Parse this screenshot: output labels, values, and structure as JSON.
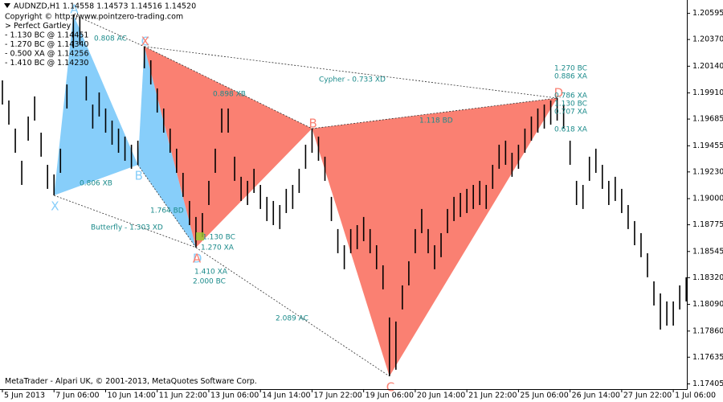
{
  "chart_data": {
    "type": "ohlc",
    "title": "AUDNZD,H1  1.14558 1.14573 1.14516 1.14520",
    "header_lines": [
      "Copyright © http://www.pointzero-trading.com",
      "> Perfect Gartley",
      "- 1.130 BC @ 1.14451",
      "- 1.270 BC @ 1.14340",
      "- 0.500 XA @ 1.14256",
      "- 1.410 BC @ 1.14230"
    ],
    "footer": "MetaTrader - Alpari UK, © 2001-2013, MetaQuotes Software Corp.",
    "categories": [
      "5 Jun 2013",
      null,
      null,
      null,
      null,
      null,
      null,
      null,
      "7 Jun 06:00",
      null,
      null,
      null,
      null,
      null,
      null,
      null,
      "10 Jun 14:00",
      null,
      null,
      null,
      null,
      null,
      null,
      null,
      "11 Jun 22:00",
      null,
      null,
      null,
      null,
      null,
      null,
      null,
      "13 Jun 06:00",
      null,
      null,
      null,
      null,
      null,
      null,
      null,
      "14 Jun 14:00",
      null,
      null,
      null,
      null,
      null,
      null,
      null,
      "17 Jun 22:00",
      null,
      null,
      null,
      null,
      null,
      null,
      null,
      "19 Jun 06:00",
      null,
      null,
      null,
      null,
      null,
      null,
      null,
      "20 Jun 14:00",
      null,
      null,
      null,
      null,
      null,
      null,
      null,
      "21 Jun 22:00",
      null,
      null,
      null,
      null,
      null,
      null,
      null,
      "25 Jun 06:00",
      null,
      null,
      null,
      null,
      null,
      null,
      null,
      "26 Jun 14:00",
      null,
      null,
      null,
      null,
      null,
      null,
      null,
      "27 Jun 22:00",
      null,
      null,
      null,
      null,
      null,
      null,
      null,
      "1 Jul 06:00",
      null,
      null
    ],
    "high": [
      1.20018,
      1.19845,
      1.19603,
      1.19326,
      1.19707,
      1.1988,
      1.19568,
      1.19291,
      1.19208,
      1.1943,
      1.19983,
      1.20585,
      1.20558,
      1.20053,
      1.1981,
      1.19914,
      1.19776,
      1.19672,
      1.19603,
      1.19534,
      1.19464,
      1.19499,
      1.20309,
      1.20191,
      1.19949,
      1.19776,
      1.19603,
      1.1943,
      1.19222,
      1.1898,
      1.18842,
      1.18876,
      1.19153,
      1.1943,
      1.19776,
      1.19776,
      1.19361,
      1.19188,
      1.19153,
      1.19257,
      1.19118,
      1.19015,
      1.1898,
      1.18945,
      1.19084,
      1.19118,
      1.19257,
      1.19464,
      1.19603,
      1.19534,
      1.19361,
      1.19015,
      1.18738,
      1.18599,
      1.18738,
      1.18772,
      1.18842,
      1.18738,
      1.18599,
      1.18426,
      1.17977,
      1.17942,
      1.18253,
      1.18461,
      1.18738,
      1.18911,
      1.18738,
      1.18599,
      1.18703,
      1.18911,
      1.19015,
      1.19049,
      1.19084,
      1.19118,
      1.19153,
      1.19118,
      1.19291,
      1.19464,
      1.19499,
      1.19395,
      1.19464,
      1.19603,
      1.19707,
      1.19776,
      1.1981,
      1.19845,
      1.19866,
      1.1981,
      1.19499,
      1.19153,
      1.19118,
      1.19361,
      1.1943,
      1.19291,
      1.19153,
      1.19188,
      1.19084,
      1.18945,
      1.18807,
      1.18703,
      1.1853,
      1.18288,
      1.18184,
      1.18115,
      1.18115,
      1.18253,
      1.18323
    ],
    "low": [
      1.1981,
      1.19637,
      1.19395,
      1.19118,
      1.19499,
      1.19672,
      1.19361,
      1.19084,
      1.19028,
      1.19222,
      1.19776,
      1.20295,
      1.20329,
      1.19845,
      1.19603,
      1.19707,
      1.19568,
      1.19464,
      1.19395,
      1.19326,
      1.19257,
      1.19291,
      1.20122,
      1.19983,
      1.19741,
      1.19568,
      1.19395,
      1.19222,
      1.19015,
      1.18772,
      1.18579,
      1.18669,
      1.18945,
      1.19222,
      1.19568,
      1.19568,
      1.19153,
      1.1898,
      1.18945,
      1.19049,
      1.18911,
      1.18807,
      1.18772,
      1.18738,
      1.18876,
      1.18911,
      1.19049,
      1.19257,
      1.19395,
      1.19326,
      1.19153,
      1.18807,
      1.1853,
      1.18392,
      1.1853,
      1.18565,
      1.18634,
      1.1853,
      1.18392,
      1.18219,
      1.17471,
      1.17527,
      1.18046,
      1.18253,
      1.1853,
      1.18703,
      1.1853,
      1.18392,
      1.18496,
      1.18703,
      1.18807,
      1.18842,
      1.18876,
      1.18911,
      1.18945,
      1.18911,
      1.19084,
      1.19257,
      1.19291,
      1.19188,
      1.19257,
      1.19395,
      1.19499,
      1.19568,
      1.19603,
      1.19637,
      1.19672,
      1.19603,
      1.19291,
      1.18945,
      1.18911,
      1.19153,
      1.19222,
      1.19084,
      1.18945,
      1.1898,
      1.18876,
      1.18738,
      1.18599,
      1.18496,
      1.18323,
      1.1808,
      1.17873,
      1.17907,
      1.17907,
      1.18046,
      1.18115
    ],
    "ylim": [
      1.1736,
      1.2071
    ],
    "yticks": [
      1.20595,
      {
        "value": 1.2037,
        "label": "1.20370"
      },
      {
        "value": 1.2014,
        "label": "1.20140"
      },
      {
        "value": 1.1991,
        "label": "1.19910"
      },
      1.19685,
      1.19455,
      {
        "value": 1.1923,
        "label": "1.19230"
      },
      {
        "value": 1.19,
        "label": "1.19000"
      },
      1.18775,
      1.18545,
      {
        "value": 1.1832,
        "label": "1.18320"
      },
      {
        "value": 1.1809,
        "label": "1.18090"
      },
      {
        "value": 1.1786,
        "label": "1.17860"
      },
      1.17635,
      1.17405
    ],
    "color": "#000000",
    "patterns": [
      {
        "color": "#87cefa",
        "points": [
          {
            "label": "X",
            "bar": 8,
            "price": 1.19028
          },
          {
            "label": "A",
            "bar": 11,
            "price": 1.20585
          },
          {
            "label": "B",
            "bar": 21,
            "price": 1.19291
          },
          {
            "label": "C",
            "bar": 22,
            "price": 1.20309
          },
          {
            "label": "D",
            "bar": 30,
            "price": 1.18579
          }
        ]
      },
      {
        "color": "#fa8072",
        "points": [
          {
            "label": "X",
            "bar": 22,
            "price": 1.20309
          },
          {
            "label": "A",
            "bar": 30,
            "price": 1.18579
          },
          {
            "label": "B",
            "bar": 48,
            "price": 1.19603
          },
          {
            "label": "C",
            "bar": 60,
            "price": 1.17471
          },
          {
            "label": "D",
            "bar": 86,
            "price": 1.19866
          }
        ]
      }
    ],
    "annotations": [
      "0.808 AC",
      "0.898 XB",
      "Cypher - 0.733 XD",
      "1.118 BD",
      "1.270 BC",
      "0.886 XA",
      "0.786 XA",
      "1.130 BC",
      "0.707 XA",
      "0.618 XA",
      "0.806 XB",
      "1.764 BD",
      "Butterfly - 1.303 XD",
      "1.130 BC",
      "1.270 XA",
      "1.410 XA",
      "2.000 BC",
      "2.089 AC"
    ]
  }
}
